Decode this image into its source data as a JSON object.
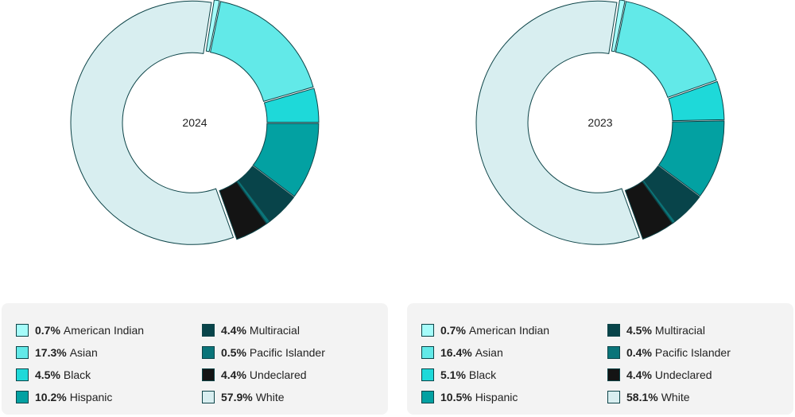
{
  "chart_data": [
    {
      "type": "pie",
      "title": "2024",
      "categories": [
        "American Indian",
        "Asian",
        "Black",
        "Hispanic",
        "Multiracial",
        "Pacific Islander",
        "Undeclared",
        "White"
      ],
      "values": [
        0.7,
        17.3,
        4.5,
        10.2,
        4.4,
        0.5,
        4.4,
        57.9
      ],
      "colors": [
        "#a5fcfa",
        "#62e9e8",
        "#1ed9d9",
        "#03a1a2",
        "#08444a",
        "#0a7479",
        "#141414",
        "#d8eef0"
      ],
      "legend_order": [
        0,
        4,
        1,
        5,
        2,
        6,
        3,
        7
      ]
    },
    {
      "type": "pie",
      "title": "2023",
      "categories": [
        "American Indian",
        "Asian",
        "Black",
        "Hispanic",
        "Multiracial",
        "Pacific Islander",
        "Undeclared",
        "White"
      ],
      "values": [
        0.7,
        16.4,
        5.1,
        10.5,
        4.5,
        0.4,
        4.4,
        58.1
      ],
      "colors": [
        "#a5fcfa",
        "#62e9e8",
        "#1ed9d9",
        "#03a1a2",
        "#08444a",
        "#0a7479",
        "#141414",
        "#d8eef0"
      ],
      "legend_order": [
        0,
        4,
        1,
        5,
        2,
        6,
        3,
        7
      ]
    }
  ]
}
